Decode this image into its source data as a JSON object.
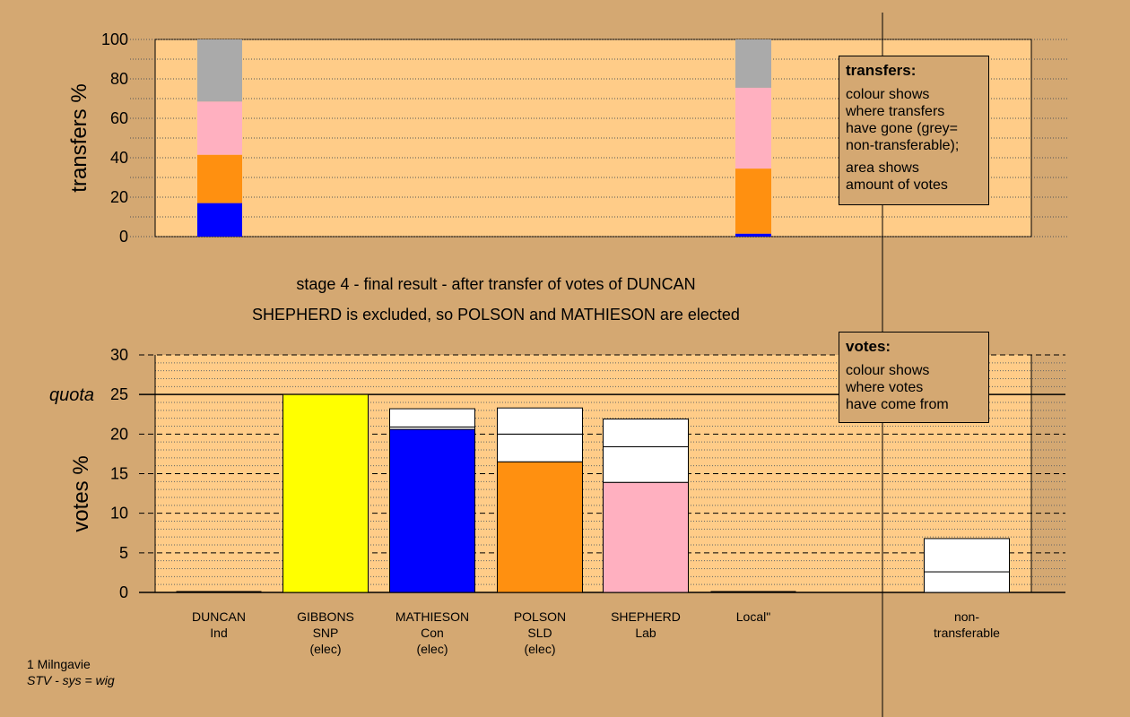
{
  "colors": {
    "background": "#D4A872",
    "plot_bg": "#FFCC88",
    "grey": "#AAAAAA",
    "pink": "#FFB0C0",
    "orange": "#FF9010",
    "blue": "#0000FF",
    "yellow": "#FFFF00",
    "white": "#FFFFFF"
  },
  "captions": {
    "line1": "stage 4 - final result - after transfer of votes of DUNCAN",
    "line2": "SHEPHERD is excluded, so POLSON and MATHIESON are elected"
  },
  "legend_transfers": {
    "title": "transfers:",
    "para1": [
      "colour shows",
      "where transfers",
      "have gone (grey=",
      "non-transferable);"
    ],
    "para2": [
      "area shows",
      "amount of votes"
    ]
  },
  "legend_votes": {
    "title": "votes:",
    "para1": [
      "colour shows",
      "where votes",
      "have come from"
    ]
  },
  "quota_label": "quota",
  "footnote": {
    "line1": "1 Milngavie",
    "line2": "STV - sys = wig"
  },
  "chart_data": [
    {
      "type": "bar",
      "stacked": true,
      "ylabel": "transfers %",
      "ylim": [
        0,
        100
      ],
      "yticks": [
        0,
        20,
        40,
        60,
        80,
        100
      ],
      "grid": "dotted",
      "bars": [
        {
          "name": "DUNCAN",
          "segments": [
            {
              "color": "blue",
              "value": 17
            },
            {
              "color": "orange",
              "value": 24.5
            },
            {
              "color": "pink",
              "value": 27
            },
            {
              "color": "grey",
              "value": 31.5
            }
          ]
        },
        {
          "name": "non-transferable",
          "segments": [
            {
              "color": "blue",
              "value": 1.5
            },
            {
              "color": "orange",
              "value": 33
            },
            {
              "color": "pink",
              "value": 41
            },
            {
              "color": "grey",
              "value": 24.5
            }
          ]
        }
      ]
    },
    {
      "type": "bar",
      "stacked": true,
      "ylabel": "votes %",
      "ylim": [
        0,
        30
      ],
      "yticks": [
        0,
        5,
        10,
        15,
        20,
        25,
        30
      ],
      "quota": 25,
      "grid": "dashed",
      "candidates": [
        {
          "name": "DUNCAN",
          "party": "Ind",
          "status": "",
          "segments": []
        },
        {
          "name": "GIBBONS",
          "party": "SNP",
          "status": "(elec)",
          "segments": [
            {
              "color": "yellow",
              "value": 25
            }
          ]
        },
        {
          "name": "MATHIESON",
          "party": "Con",
          "status": "(elec)",
          "segments": [
            {
              "color": "blue",
              "value": 20.6
            },
            {
              "color": "white",
              "value": 0.3
            },
            {
              "color": "white",
              "value": 2.3
            }
          ]
        },
        {
          "name": "POLSON",
          "party": "SLD",
          "status": "(elec)",
          "segments": [
            {
              "color": "orange",
              "value": 16.5
            },
            {
              "color": "white",
              "value": 3.5
            },
            {
              "color": "white",
              "value": 3.3
            }
          ]
        },
        {
          "name": "SHEPHERD",
          "party": "Lab",
          "status": "",
          "segments": [
            {
              "color": "pink",
              "value": 13.9
            },
            {
              "color": "white",
              "value": 4.5
            },
            {
              "color": "white",
              "value": 3.5
            }
          ]
        },
        {
          "name": "Local\"",
          "party": "",
          "status": "",
          "segments": []
        },
        {
          "name": "non-",
          "party": "transferable",
          "status": "",
          "segments": [
            {
              "color": "white",
              "value": 2.6
            },
            {
              "color": "white",
              "value": 4.2
            }
          ]
        }
      ]
    }
  ]
}
